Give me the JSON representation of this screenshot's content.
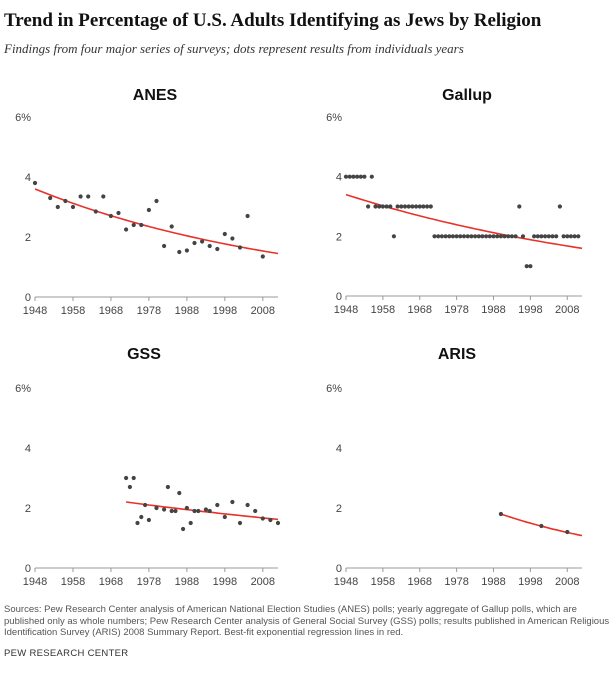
{
  "title": "Trend in Percentage of U.S. Adults Identifying as Jews by Religion",
  "subtitle": "Findings from four major series of surveys; dots represent results from individuals years",
  "source": "Sources: Pew Research Center analysis of American National Election Studies (ANES) polls; yearly aggregate of Gallup polls, which are published only as whole numbers; Pew Research Center analysis of General Social Survey (GSS) polls; results published in American Religious Identification Survey (ARIS) 2008 Summary Report. Best-fit exponential regression lines in red.",
  "organization": "PEW RESEARCH CENTER",
  "colors": {
    "dots": "#444444",
    "trend": "#e8312a",
    "axis": "#999999"
  },
  "chart_data": [
    {
      "type": "scatter",
      "title": "ANES",
      "xlim": [
        1948,
        2012
      ],
      "ylim": [
        0,
        6
      ],
      "xticks": [
        "1948",
        "1958",
        "1968",
        "1978",
        "1988",
        "1998",
        "2008"
      ],
      "yticks": [
        "0",
        "2",
        "4",
        "6%"
      ],
      "points": [
        [
          1948,
          3.8
        ],
        [
          1952,
          3.3
        ],
        [
          1954,
          3.0
        ],
        [
          1956,
          3.2
        ],
        [
          1958,
          3.0
        ],
        [
          1960,
          3.35
        ],
        [
          1962,
          3.35
        ],
        [
          1964,
          2.85
        ],
        [
          1966,
          3.35
        ],
        [
          1968,
          2.7
        ],
        [
          1970,
          2.8
        ],
        [
          1972,
          2.25
        ],
        [
          1974,
          2.4
        ],
        [
          1976,
          2.4
        ],
        [
          1978,
          2.9
        ],
        [
          1980,
          3.2
        ],
        [
          1982,
          1.7
        ],
        [
          1984,
          2.35
        ],
        [
          1986,
          1.5
        ],
        [
          1988,
          1.55
        ],
        [
          1990,
          1.8
        ],
        [
          1992,
          1.85
        ],
        [
          1994,
          1.7
        ],
        [
          1996,
          1.6
        ],
        [
          1998,
          2.1
        ],
        [
          2000,
          1.95
        ],
        [
          2002,
          1.65
        ],
        [
          2004,
          2.7
        ],
        [
          2008,
          1.35
        ]
      ],
      "trend": {
        "x": [
          1948,
          2012
        ],
        "y": [
          3.6,
          1.45
        ]
      }
    },
    {
      "type": "scatter",
      "title": "Gallup",
      "xlim": [
        1948,
        2012
      ],
      "ylim": [
        0,
        6
      ],
      "xticks": [
        "1948",
        "1958",
        "1968",
        "1978",
        "1988",
        "1998",
        "2008"
      ],
      "yticks": [
        "0",
        "2",
        "4",
        "6%"
      ],
      "points": [
        [
          1948,
          4
        ],
        [
          1949,
          4
        ],
        [
          1950,
          4
        ],
        [
          1951,
          4
        ],
        [
          1952,
          4
        ],
        [
          1953,
          4
        ],
        [
          1954,
          3
        ],
        [
          1955,
          4
        ],
        [
          1956,
          3
        ],
        [
          1957,
          3
        ],
        [
          1958,
          3
        ],
        [
          1959,
          3
        ],
        [
          1960,
          3
        ],
        [
          1961,
          2
        ],
        [
          1962,
          3
        ],
        [
          1963,
          3
        ],
        [
          1964,
          3
        ],
        [
          1965,
          3
        ],
        [
          1966,
          3
        ],
        [
          1967,
          3
        ],
        [
          1968,
          3
        ],
        [
          1969,
          3
        ],
        [
          1970,
          3
        ],
        [
          1971,
          3
        ],
        [
          1972,
          2
        ],
        [
          1973,
          2
        ],
        [
          1974,
          2
        ],
        [
          1975,
          2
        ],
        [
          1976,
          2
        ],
        [
          1977,
          2
        ],
        [
          1978,
          2
        ],
        [
          1979,
          2
        ],
        [
          1980,
          2
        ],
        [
          1981,
          2
        ],
        [
          1982,
          2
        ],
        [
          1983,
          2
        ],
        [
          1984,
          2
        ],
        [
          1985,
          2
        ],
        [
          1986,
          2
        ],
        [
          1987,
          2
        ],
        [
          1988,
          2
        ],
        [
          1989,
          2
        ],
        [
          1990,
          2
        ],
        [
          1991,
          2
        ],
        [
          1992,
          2
        ],
        [
          1993,
          2
        ],
        [
          1994,
          2
        ],
        [
          1995,
          3
        ],
        [
          1996,
          2
        ],
        [
          1997,
          1
        ],
        [
          1998,
          1
        ],
        [
          1999,
          2
        ],
        [
          2000,
          2
        ],
        [
          2001,
          2
        ],
        [
          2002,
          2
        ],
        [
          2003,
          2
        ],
        [
          2004,
          2
        ],
        [
          2005,
          2
        ],
        [
          2006,
          3
        ],
        [
          2007,
          2
        ],
        [
          2008,
          2
        ],
        [
          2009,
          2
        ],
        [
          2010,
          2
        ],
        [
          2011,
          2
        ]
      ],
      "trend": {
        "x": [
          1948,
          2012
        ],
        "y": [
          3.4,
          1.6
        ]
      }
    },
    {
      "type": "scatter",
      "title": "GSS",
      "xlim": [
        1948,
        2012
      ],
      "ylim": [
        0,
        6
      ],
      "xticks": [
        "1948",
        "1958",
        "1968",
        "1978",
        "1988",
        "1998",
        "2008"
      ],
      "yticks": [
        "0",
        "2",
        "4",
        "6%"
      ],
      "points": [
        [
          1972,
          3.0
        ],
        [
          1973,
          2.7
        ],
        [
          1974,
          3.0
        ],
        [
          1975,
          1.5
        ],
        [
          1976,
          1.7
        ],
        [
          1977,
          2.1
        ],
        [
          1978,
          1.6
        ],
        [
          1980,
          2.0
        ],
        [
          1982,
          1.95
        ],
        [
          1983,
          2.7
        ],
        [
          1984,
          1.9
        ],
        [
          1985,
          1.9
        ],
        [
          1986,
          2.5
        ],
        [
          1987,
          1.3
        ],
        [
          1988,
          2.0
        ],
        [
          1989,
          1.5
        ],
        [
          1990,
          1.9
        ],
        [
          1991,
          1.9
        ],
        [
          1993,
          1.95
        ],
        [
          1994,
          1.9
        ],
        [
          1996,
          2.1
        ],
        [
          1998,
          1.7
        ],
        [
          2000,
          2.2
        ],
        [
          2002,
          1.5
        ],
        [
          2004,
          2.1
        ],
        [
          2006,
          1.9
        ],
        [
          2008,
          1.65
        ],
        [
          2010,
          1.6
        ],
        [
          2012,
          1.5
        ]
      ],
      "trend": {
        "x": [
          1972,
          2012
        ],
        "y": [
          2.2,
          1.62
        ]
      }
    },
    {
      "type": "scatter",
      "title": "ARIS",
      "xlim": [
        1948,
        2012
      ],
      "ylim": [
        0,
        6
      ],
      "xticks": [
        "1948",
        "1958",
        "1968",
        "1978",
        "1988",
        "1998",
        "2008"
      ],
      "yticks": [
        "0",
        "2",
        "4",
        "6%"
      ],
      "points": [
        [
          1990,
          1.8
        ],
        [
          2001,
          1.4
        ],
        [
          2008,
          1.2
        ]
      ],
      "trend": {
        "x": [
          1990,
          2012
        ],
        "y": [
          1.8,
          1.08
        ]
      }
    }
  ]
}
